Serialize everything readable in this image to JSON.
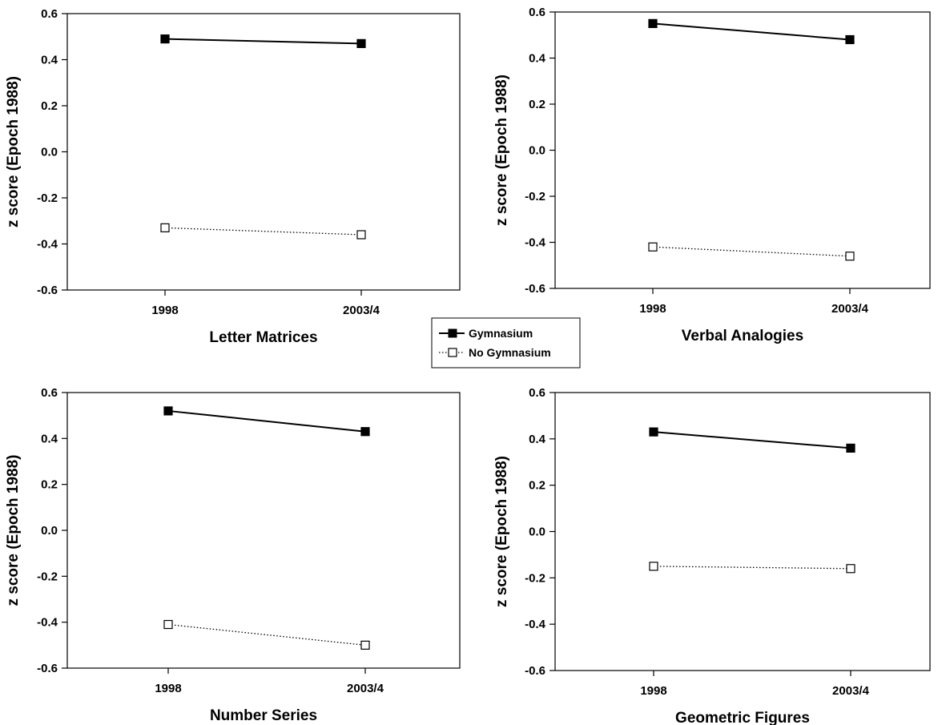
{
  "colors": {
    "gymnasium": "#000000",
    "no_gymnasium": "#000000",
    "background": "#ffffff"
  },
  "legend": {
    "entries": [
      {
        "label": "Gymnasium",
        "marker": "filled-square",
        "line": "solid"
      },
      {
        "label": "No Gymnasium",
        "marker": "open-square",
        "line": "dotted"
      }
    ],
    "placement": "center"
  },
  "chart_data": [
    {
      "type": "line",
      "xlabel": "Letter Matrices",
      "ylabel": "z score (Epoch 1988)",
      "categories": [
        "1998",
        "2003/4"
      ],
      "ylim": [
        -0.6,
        0.6
      ],
      "yticks": [
        "-0.6",
        "-0.4",
        "-0.2",
        "0.0",
        "0.2",
        "0.4",
        "0.6"
      ],
      "grid": false,
      "series": [
        {
          "name": "Gymnasium",
          "values": [
            0.49,
            0.47
          ]
        },
        {
          "name": "No Gymnasium",
          "values": [
            -0.33,
            -0.36
          ]
        }
      ]
    },
    {
      "type": "line",
      "xlabel": "Verbal Analogies",
      "ylabel": "z score (Epoch 1988)",
      "categories": [
        "1998",
        "2003/4"
      ],
      "ylim": [
        -0.6,
        0.6
      ],
      "yticks": [
        "-0.6",
        "-0.4",
        "-0.2",
        "0.0",
        "0.2",
        "0.4",
        "0.6"
      ],
      "grid": false,
      "series": [
        {
          "name": "Gymnasium",
          "values": [
            0.55,
            0.48
          ]
        },
        {
          "name": "No Gymnasium",
          "values": [
            -0.42,
            -0.46
          ]
        }
      ]
    },
    {
      "type": "line",
      "xlabel": "Number Series",
      "ylabel": "z score (Epoch 1988)",
      "categories": [
        "1998",
        "2003/4"
      ],
      "ylim": [
        -0.6,
        0.6
      ],
      "yticks": [
        "-0.6",
        "-0.4",
        "-0.2",
        "0.0",
        "0.2",
        "0.4",
        "0.6"
      ],
      "grid": false,
      "series": [
        {
          "name": "Gymnasium",
          "values": [
            0.52,
            0.43
          ]
        },
        {
          "name": "No Gymnasium",
          "values": [
            -0.41,
            -0.5
          ]
        }
      ]
    },
    {
      "type": "line",
      "xlabel": "Geometric Figures",
      "ylabel": "z score (Epoch 1988)",
      "categories": [
        "1998",
        "2003/4"
      ],
      "ylim": [
        -0.6,
        0.6
      ],
      "yticks": [
        "-0.6",
        "-0.4",
        "-0.2",
        "0.0",
        "0.2",
        "0.4",
        "0.6"
      ],
      "grid": false,
      "series": [
        {
          "name": "Gymnasium",
          "values": [
            0.43,
            0.36
          ]
        },
        {
          "name": "No Gymnasium",
          "values": [
            -0.15,
            -0.16
          ]
        }
      ]
    }
  ]
}
